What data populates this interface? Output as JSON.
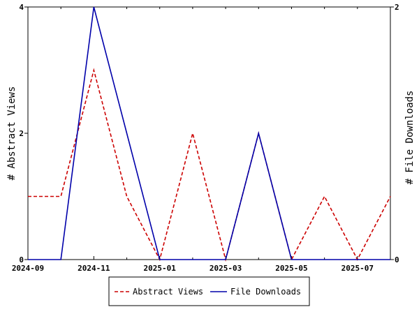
{
  "chart_data": {
    "type": "line",
    "x": [
      "2024-09",
      "2024-10",
      "2024-11",
      "2024-12",
      "2025-01",
      "2025-02",
      "2025-03",
      "2025-04",
      "2025-05",
      "2025-06",
      "2025-07",
      "2025-08"
    ],
    "x_tick_labels": [
      "2024-09",
      "2024-11",
      "2025-01",
      "2025-03",
      "2025-05",
      "2025-07"
    ],
    "ylabel_left": "# Abstract Views",
    "ylabel_right": "# File Downloads",
    "ylim_left": [
      0,
      4
    ],
    "ylim_right": [
      0,
      2
    ],
    "y_ticks_left": [
      "0",
      "2",
      "4"
    ],
    "y_ticks_right": [
      "0",
      "2"
    ],
    "grid": false,
    "legend_position": "bottom",
    "series": [
      {
        "name": "Abstract Views",
        "axis": "left",
        "color": "#cc0000",
        "dash": "dashed",
        "values": [
          1,
          1,
          3,
          1,
          0,
          2,
          0,
          2,
          0,
          1,
          0,
          1
        ]
      },
      {
        "name": "File Downloads",
        "axis": "right",
        "color": "#0000aa",
        "dash": "solid",
        "values": [
          0,
          0,
          2,
          1,
          0,
          0,
          0,
          1,
          0,
          0,
          0,
          0
        ]
      }
    ]
  }
}
